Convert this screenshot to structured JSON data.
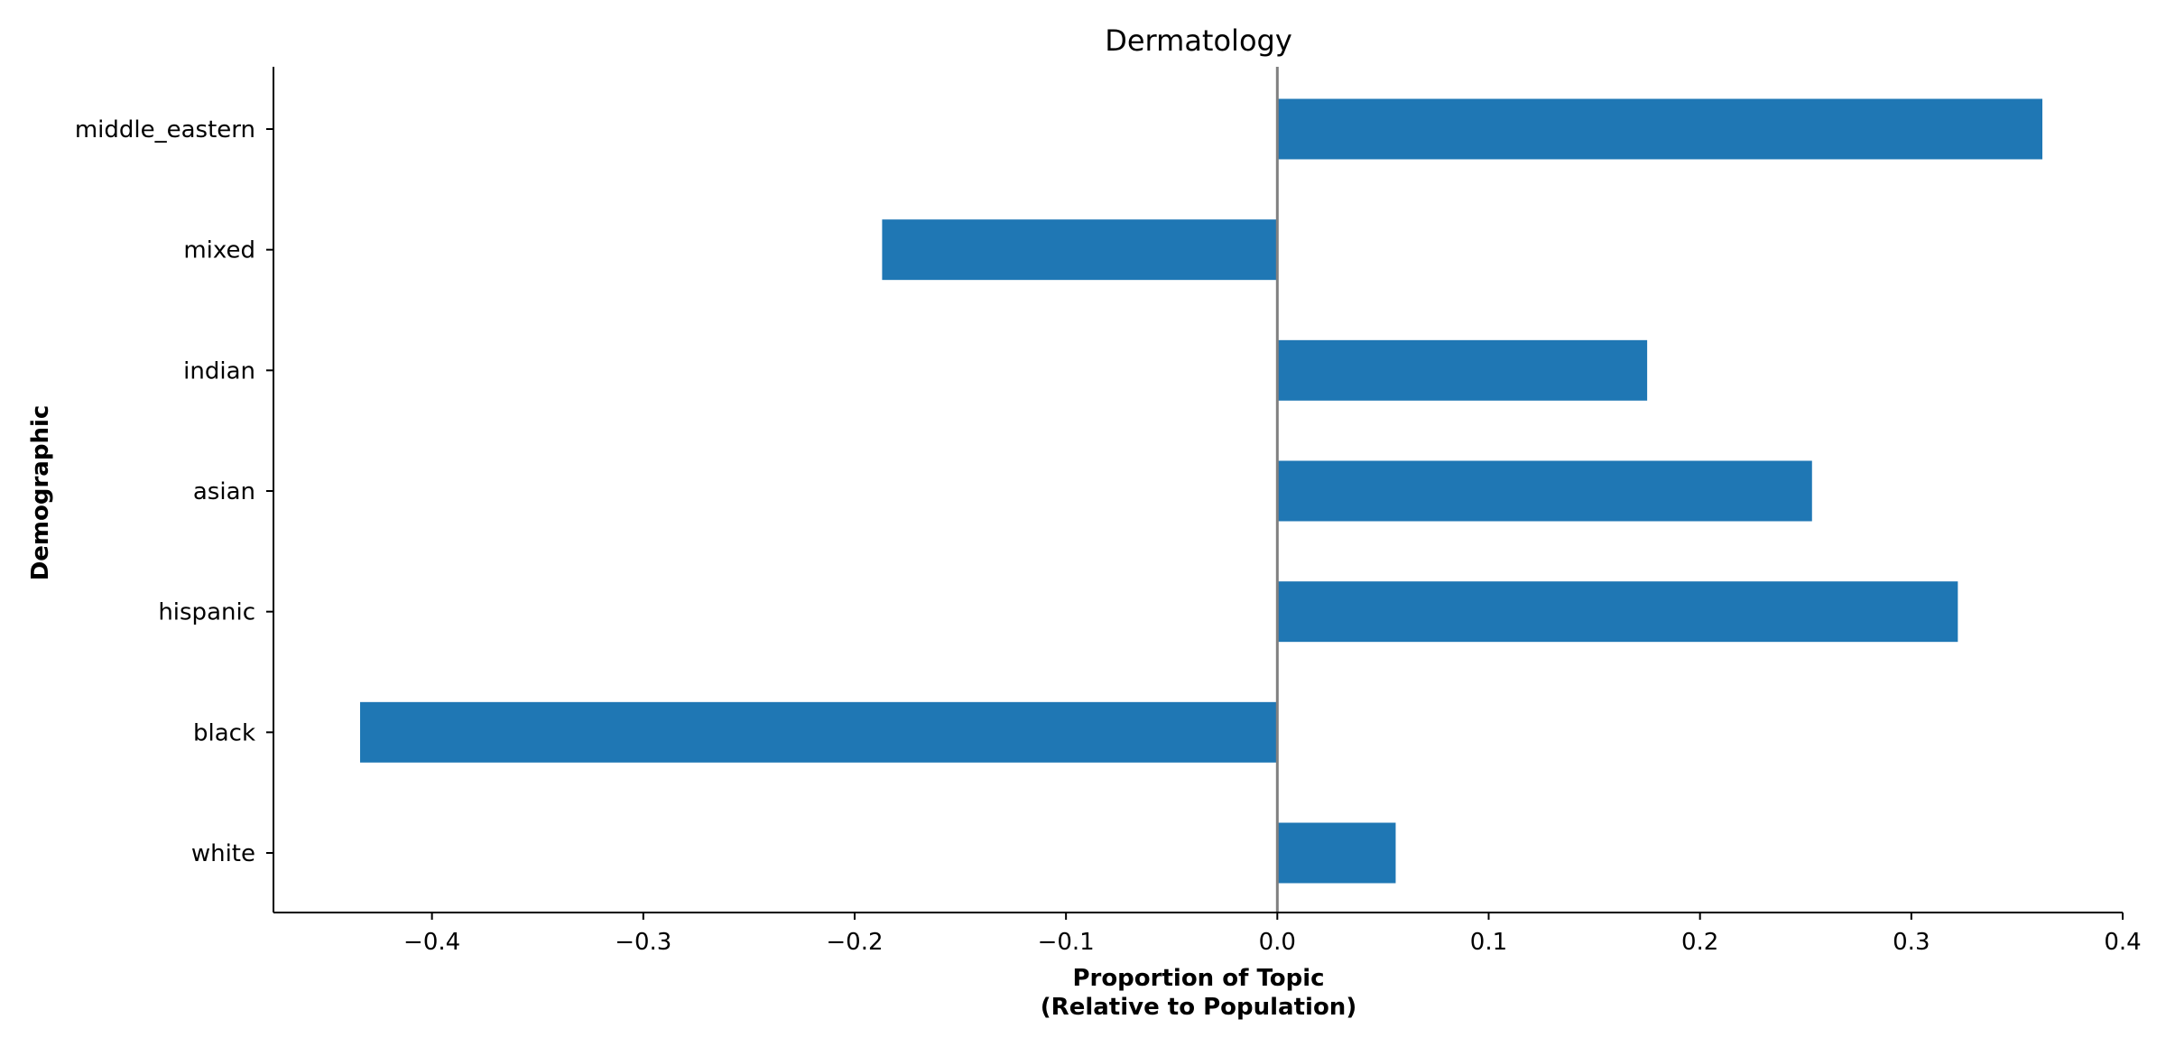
{
  "chart_data": {
    "type": "bar",
    "orientation": "horizontal",
    "title": "Dermatology",
    "xlabel_lines": [
      "Proportion of Topic",
      "(Relative to Population)"
    ],
    "ylabel": "Demographic",
    "categories": [
      "white",
      "black",
      "hispanic",
      "asian",
      "indian",
      "mixed",
      "middle_eastern"
    ],
    "values": [
      0.056,
      -0.434,
      0.322,
      0.253,
      0.175,
      -0.187,
      0.362
    ],
    "xlim": [
      -0.475,
      0.4
    ],
    "xticks": [
      -0.4,
      -0.3,
      -0.2,
      -0.1,
      0.0,
      0.1,
      0.2,
      0.3,
      0.4
    ],
    "xtick_labels": [
      "−0.4",
      "−0.3",
      "−0.2",
      "−0.1",
      "0.0",
      "0.1",
      "0.2",
      "0.3",
      "0.4"
    ],
    "zero_line": true,
    "grid": false,
    "colors": {
      "bar": "#1f77b4",
      "zero_line": "#808080",
      "axis": "#000000"
    }
  }
}
